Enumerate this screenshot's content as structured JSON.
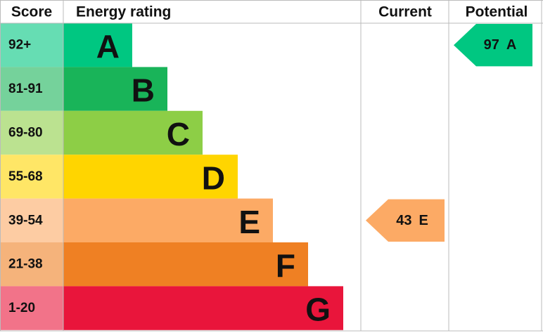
{
  "header": {
    "score": "Score",
    "rating": "Energy rating",
    "current": "Current",
    "potential": "Potential"
  },
  "bands": [
    {
      "range": "92+",
      "letter": "A",
      "color": "#00c781"
    },
    {
      "range": "81-91",
      "letter": "B",
      "color": "#19b459"
    },
    {
      "range": "69-80",
      "letter": "C",
      "color": "#8dce46"
    },
    {
      "range": "55-68",
      "letter": "D",
      "color": "#ffd500"
    },
    {
      "range": "39-54",
      "letter": "E",
      "color": "#fcaa65"
    },
    {
      "range": "21-38",
      "letter": "F",
      "color": "#ef8023"
    },
    {
      "range": "1-20",
      "letter": "G",
      "color": "#e9153b"
    }
  ],
  "current": {
    "score": 43,
    "rating": "E"
  },
  "potential": {
    "score": 97,
    "rating": "A"
  }
}
